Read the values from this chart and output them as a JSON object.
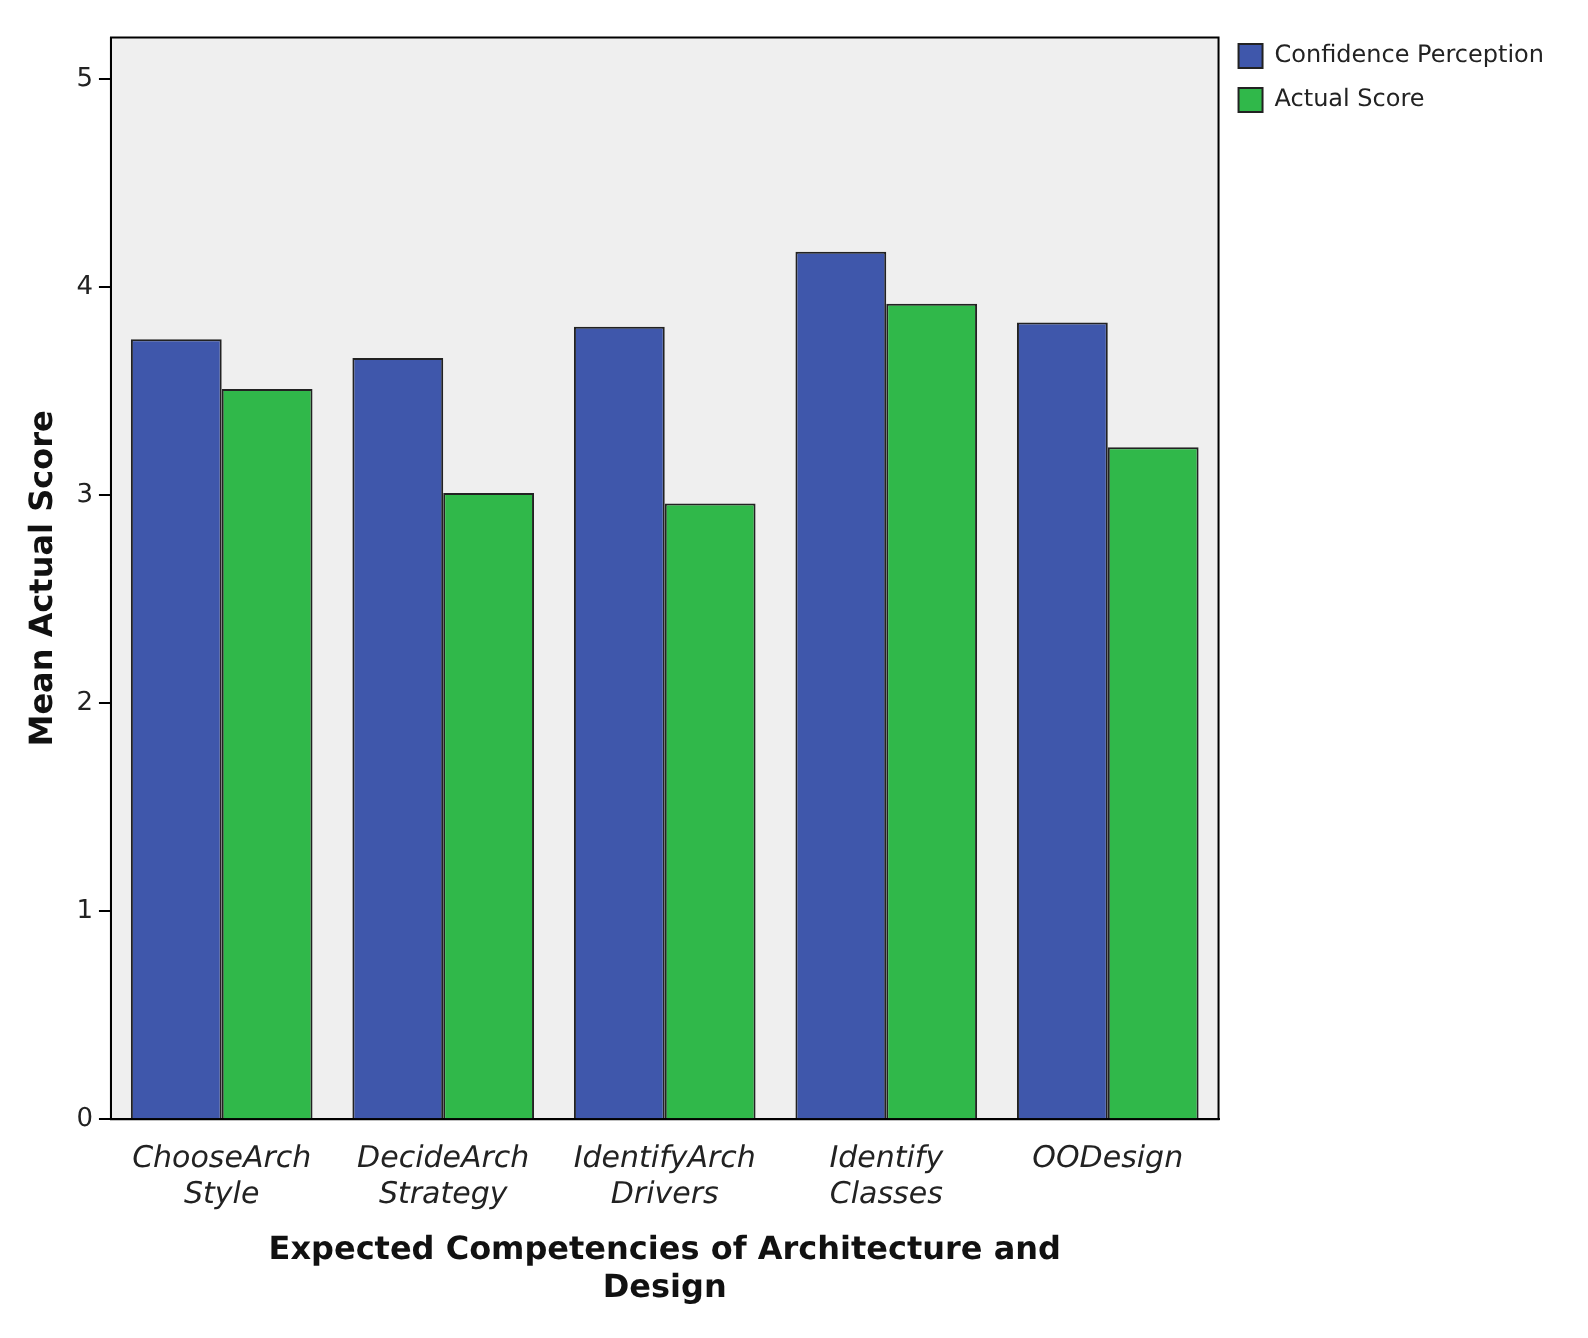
{
  "chart_data": {
    "type": "bar",
    "xlabel": "Expected Competencies of Architecture and Design",
    "ylabel": "Mean Actual Score",
    "categories": [
      "ChooseArch Style",
      "DecideArch Strategy",
      "IdentifyArch Drivers",
      "Identify Classes",
      "OODesign"
    ],
    "series": [
      {
        "name": "Confidence Perception",
        "color": "#3f57ab",
        "values": [
          3.75,
          3.66,
          3.81,
          4.17,
          3.83
        ]
      },
      {
        "name": "Actual Score",
        "color": "#30b84a",
        "values": [
          3.51,
          3.01,
          2.96,
          3.92,
          3.23
        ]
      }
    ],
    "ylim": [
      0,
      5.2
    ],
    "yticks": [
      0,
      1,
      2,
      3,
      4,
      5
    ],
    "grid": false,
    "legend": "top right"
  }
}
